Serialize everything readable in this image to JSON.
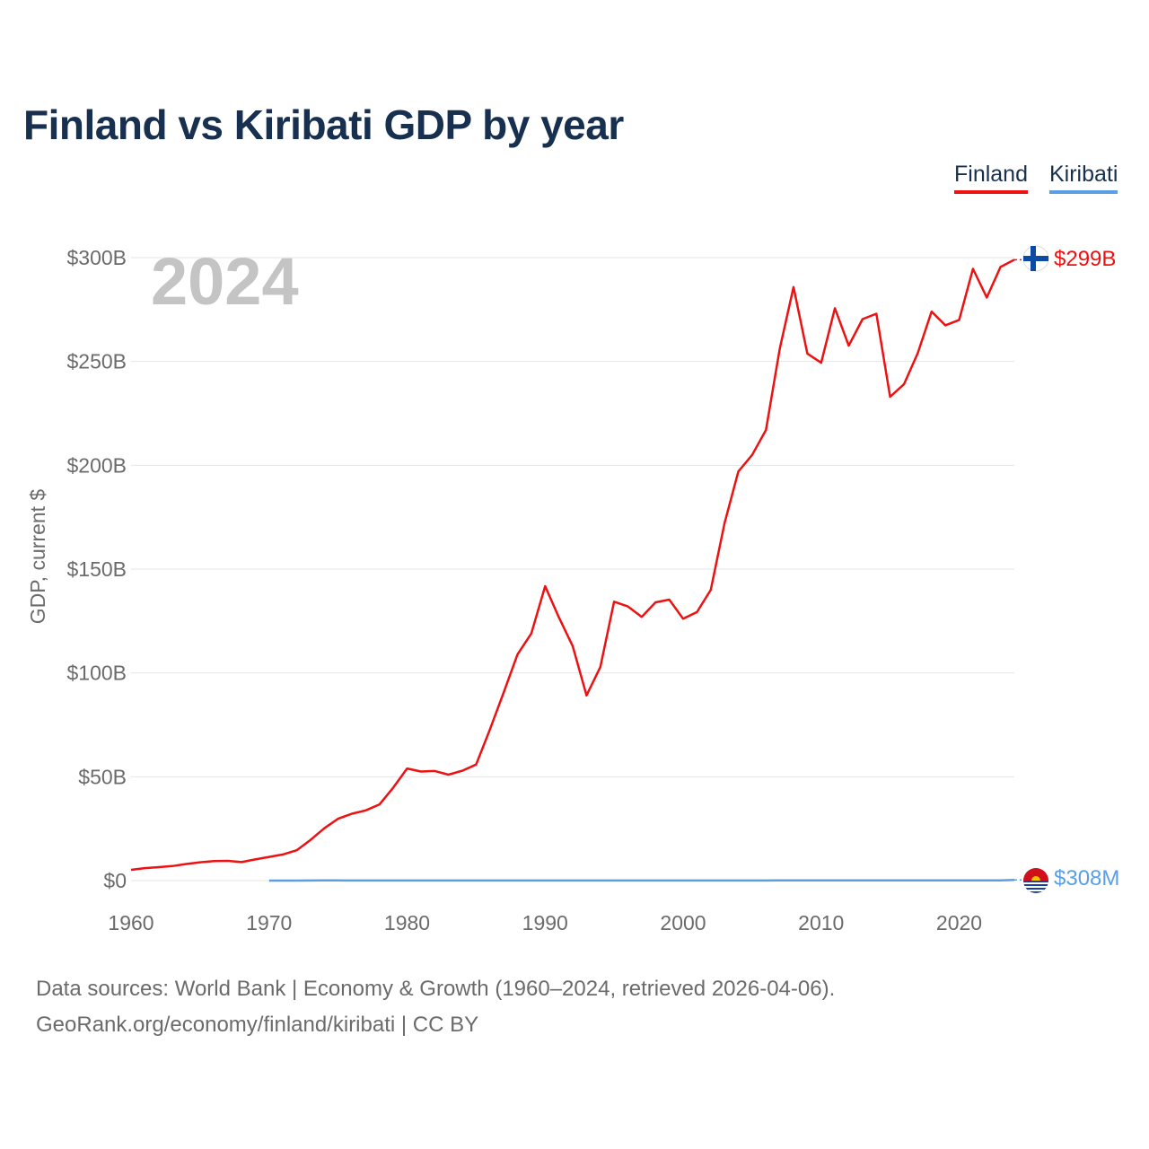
{
  "chart_data": {
    "type": "line",
    "title": "Finland vs Kiribati GDP by year",
    "ylabel": "GDP, current $",
    "xlabel": "",
    "year_label": "2024",
    "xlim": [
      1960,
      2024
    ],
    "ylim": [
      0,
      300
    ],
    "x_ticks": [
      1960,
      1970,
      1980,
      1990,
      2000,
      2010,
      2020
    ],
    "y_ticks": [
      {
        "value": 0,
        "label": "$0"
      },
      {
        "value": 50,
        "label": "$50B"
      },
      {
        "value": 100,
        "label": "$100B"
      },
      {
        "value": 150,
        "label": "$150B"
      },
      {
        "value": 200,
        "label": "$200B"
      },
      {
        "value": 250,
        "label": "$250B"
      },
      {
        "value": 300,
        "label": "$300B"
      }
    ],
    "legend": [
      "Finland",
      "Kiribati"
    ],
    "series": [
      {
        "name": "Finland",
        "color": "#ee1111",
        "end_label": "$299B",
        "flag_icon": "finland-flag-icon",
        "x": [
          1960,
          1961,
          1962,
          1963,
          1964,
          1965,
          1966,
          1967,
          1968,
          1969,
          1970,
          1971,
          1972,
          1973,
          1974,
          1975,
          1976,
          1977,
          1978,
          1979,
          1980,
          1981,
          1982,
          1983,
          1984,
          1985,
          1986,
          1987,
          1988,
          1989,
          1990,
          1991,
          1992,
          1993,
          1994,
          1995,
          1996,
          1997,
          1998,
          1999,
          2000,
          2001,
          2002,
          2003,
          2004,
          2005,
          2006,
          2007,
          2008,
          2009,
          2010,
          2011,
          2012,
          2013,
          2014,
          2015,
          2016,
          2017,
          2018,
          2019,
          2020,
          2021,
          2022,
          2023,
          2024
        ],
        "values": [
          5.2,
          6.0,
          6.5,
          7.0,
          8.0,
          8.8,
          9.4,
          9.5,
          8.9,
          10.2,
          11.4,
          12.6,
          14.6,
          19.6,
          25.2,
          29.8,
          32.2,
          33.8,
          36.7,
          44.8,
          54.0,
          52.5,
          52.8,
          51.0,
          52.9,
          55.9,
          72.8,
          90.6,
          108.9,
          119.0,
          141.8,
          126.8,
          112.9,
          89.2,
          102.9,
          134.3,
          132.0,
          127.0,
          134.0,
          135.3,
          126.1,
          129.3,
          140.0,
          172.0,
          197.0,
          205.0,
          217.0,
          256.0,
          285.8,
          253.8,
          249.4,
          275.6,
          257.6,
          270.4,
          273.0,
          233.0,
          239.0,
          254.0,
          274.0,
          267.4,
          270.0,
          294.6,
          280.8,
          295.5,
          299.0
        ]
      },
      {
        "name": "Kiribati",
        "color": "#5b9fe3",
        "end_label": "$308M",
        "flag_icon": "kiribati-flag-icon",
        "x": [
          1970,
          1971,
          1972,
          1973,
          1974,
          1975,
          1976,
          1977,
          1978,
          1979,
          1980,
          1981,
          1982,
          1983,
          1984,
          1985,
          1986,
          1987,
          1988,
          1989,
          1990,
          1991,
          1992,
          1993,
          1994,
          1995,
          1996,
          1997,
          1998,
          1999,
          2000,
          2001,
          2002,
          2003,
          2004,
          2005,
          2006,
          2007,
          2008,
          2009,
          2010,
          2011,
          2012,
          2013,
          2014,
          2015,
          2016,
          2017,
          2018,
          2019,
          2020,
          2021,
          2022,
          2023,
          2024
        ],
        "values": [
          0.014,
          0.015,
          0.018,
          0.03,
          0.09,
          0.08,
          0.06,
          0.05,
          0.05,
          0.04,
          0.03,
          0.03,
          0.03,
          0.03,
          0.03,
          0.03,
          0.03,
          0.03,
          0.03,
          0.03,
          0.03,
          0.03,
          0.04,
          0.04,
          0.04,
          0.05,
          0.05,
          0.05,
          0.05,
          0.05,
          0.05,
          0.05,
          0.05,
          0.06,
          0.06,
          0.06,
          0.06,
          0.07,
          0.07,
          0.07,
          0.07,
          0.08,
          0.09,
          0.09,
          0.09,
          0.08,
          0.08,
          0.08,
          0.09,
          0.09,
          0.09,
          0.12,
          0.12,
          0.14,
          0.308
        ]
      }
    ],
    "footer": {
      "sources": "Data sources: World Bank | Economy & Growth (1960–2024, retrieved 2026-04-06).",
      "credit": "GeoRank.org/economy/finland/kiribati | CC BY"
    }
  }
}
